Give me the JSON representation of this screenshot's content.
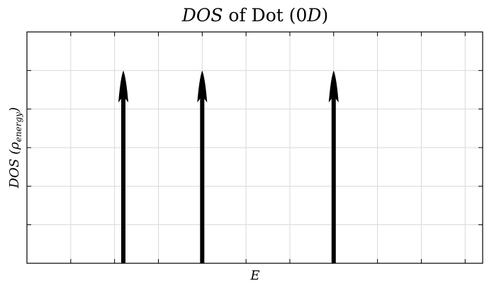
{
  "chart_data": {
    "type": "stem-arrows",
    "title": "DOS of Dot (0D)",
    "title_parts": {
      "italic": "DOS",
      "rest": " of Dot (0",
      "italic2": "D",
      "close": ")"
    },
    "xlabel": "E",
    "ylabel": "DOS (ρenergy)",
    "ylabel_parts": {
      "main": "DOS (ρ",
      "sub": "energy",
      "close": ")"
    },
    "x_ticks": 11,
    "y_ticks": 6,
    "grid": true,
    "tick_labels": "none",
    "arrows": [
      {
        "x": 2.2,
        "height": 5
      },
      {
        "x": 4.0,
        "height": 5
      },
      {
        "x": 7.0,
        "height": 5
      }
    ],
    "xlim": [
      0,
      10.4
    ],
    "ylim": [
      0,
      6
    ]
  }
}
